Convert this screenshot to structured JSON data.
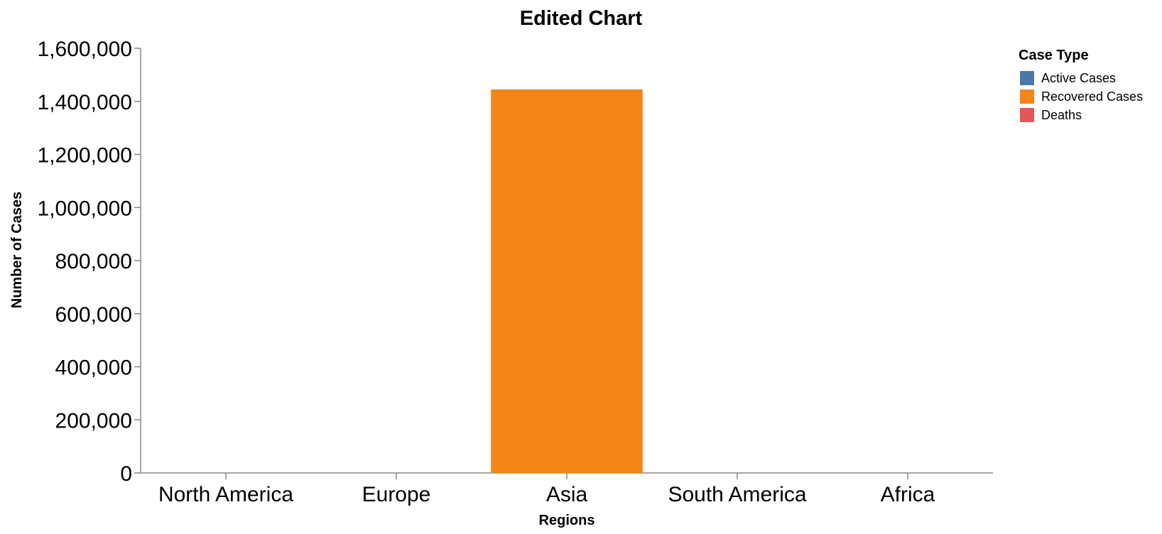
{
  "chart_data": {
    "type": "bar",
    "title": "Edited Chart",
    "xlabel": "Regions",
    "ylabel": "Number of Cases",
    "categories": [
      "North America",
      "Europe",
      "Asia",
      "South America",
      "Africa"
    ],
    "ylim": [
      0,
      1600000
    ],
    "yticks": [
      0,
      200000,
      400000,
      600000,
      800000,
      1000000,
      1200000,
      1400000,
      1600000
    ],
    "ytick_labels": [
      "0",
      "200,000",
      "400,000",
      "600,000",
      "800,000",
      "1,000,000",
      "1,200,000",
      "1,400,000",
      "1,600,000"
    ],
    "series": [
      {
        "name": "Active Cases",
        "color": "#4c78a8",
        "values": [
          0,
          0,
          0,
          0,
          0
        ]
      },
      {
        "name": "Recovered Cases",
        "color": "#f58518",
        "values": [
          0,
          0,
          1445000,
          0,
          0
        ]
      },
      {
        "name": "Deaths",
        "color": "#e45756",
        "values": [
          0,
          0,
          0,
          0,
          0
        ]
      }
    ],
    "legend": {
      "title": "Case Type",
      "position": "top-right"
    },
    "grid": false
  }
}
